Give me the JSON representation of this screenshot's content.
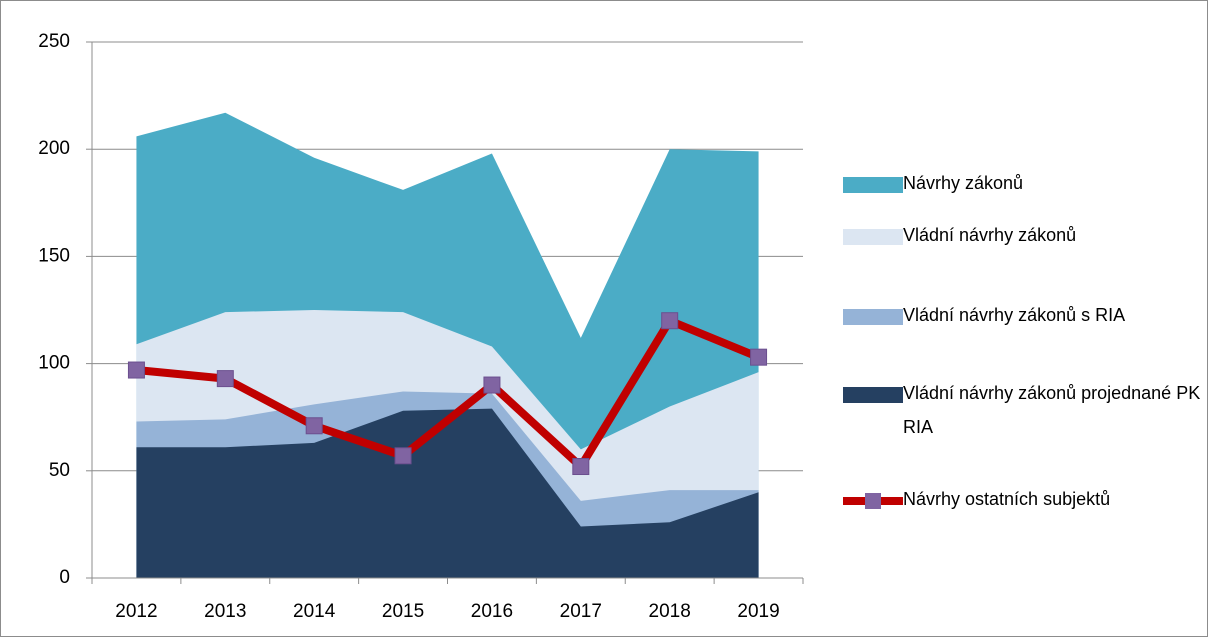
{
  "chart_data": {
    "type": "area",
    "categories": [
      "2012",
      "2013",
      "2014",
      "2015",
      "2016",
      "2017",
      "2018",
      "2019"
    ],
    "series": [
      {
        "name": "Návrhy zákonů",
        "color": "#4bacc6",
        "type": "area",
        "values": [
          206,
          217,
          196,
          181,
          198,
          112,
          200,
          199
        ]
      },
      {
        "name": "Vládní návrhy zákonů",
        "color": "#dce6f2",
        "type": "area",
        "values": [
          109,
          124,
          125,
          124,
          108,
          60,
          80,
          96
        ]
      },
      {
        "name": "Vládní návrhy zákonů s RIA",
        "color": "#95b3d7",
        "type": "area",
        "values": [
          73,
          74,
          81,
          87,
          86,
          36,
          41,
          41
        ]
      },
      {
        "name": "Vládní návrhy zákonů projednané PK RIA",
        "color": "#254061",
        "type": "area",
        "values": [
          61,
          61,
          63,
          78,
          79,
          24,
          26,
          40
        ]
      },
      {
        "name": "Návrhy ostatních subjektů",
        "color": "#c00000",
        "marker_color": "#8064a2",
        "type": "line",
        "values": [
          97,
          93,
          71,
          57,
          90,
          52,
          120,
          103
        ]
      }
    ],
    "ylim": [
      0,
      250
    ],
    "yticks": [
      0,
      50,
      100,
      150,
      200,
      250
    ],
    "grid": true,
    "legend": "right"
  }
}
